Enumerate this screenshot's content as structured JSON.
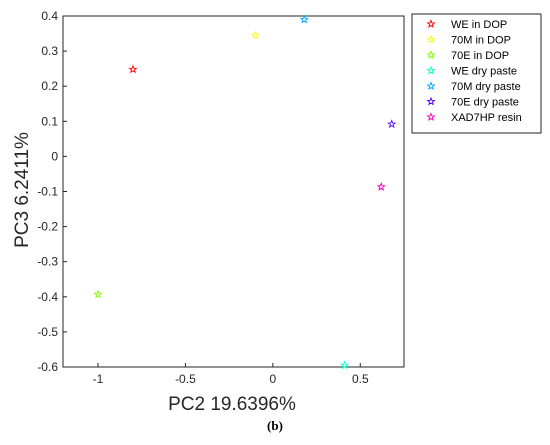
{
  "chart_data": {
    "type": "scatter",
    "marker": "star",
    "xlabel": "PC2 19.6396%",
    "ylabel": "PC3 6.2411%",
    "xlim": [
      -1.2,
      0.75
    ],
    "ylim": [
      -0.6,
      0.4
    ],
    "xticks": [
      -1,
      -0.5,
      0,
      0.5
    ],
    "xtick_labels": [
      "-1",
      "-0.5",
      "0",
      "0.5"
    ],
    "yticks": [
      0.4,
      0.3,
      0.2,
      0.1,
      0,
      -0.1,
      -0.2,
      -0.3,
      -0.4,
      -0.5,
      -0.6
    ],
    "ytick_labels": [
      "0.4",
      "0.3",
      "0.2",
      "0.1",
      "0",
      "-0.1",
      "-0.2",
      "-0.3",
      "-0.4",
      "-0.5",
      "-0.6"
    ],
    "grid": false,
    "legend_position": "outside-top-right",
    "series": [
      {
        "name": "WE in DOP",
        "color": "#ff0000",
        "x": [
          -0.8
        ],
        "y": [
          0.248
        ]
      },
      {
        "name": "70M in DOP",
        "color": "#ffff00",
        "x": [
          -0.1
        ],
        "y": [
          0.345
        ]
      },
      {
        "name": "70E in DOP",
        "color": "#7fff00",
        "x": [
          -1.0
        ],
        "y": [
          -0.393
        ]
      },
      {
        "name": "WE dry paste",
        "color": "#00ffbf",
        "x": [
          0.41
        ],
        "y": [
          -0.595
        ]
      },
      {
        "name": "70M dry paste",
        "color": "#00aaff",
        "x": [
          0.18
        ],
        "y": [
          0.39
        ]
      },
      {
        "name": "70E dry paste",
        "color": "#5500ff",
        "x": [
          0.68
        ],
        "y": [
          0.092
        ]
      },
      {
        "name": "XAD7HP resin",
        "color": "#ff00bf",
        "x": [
          0.62
        ],
        "y": [
          -0.087
        ]
      }
    ]
  },
  "caption": "(b)"
}
